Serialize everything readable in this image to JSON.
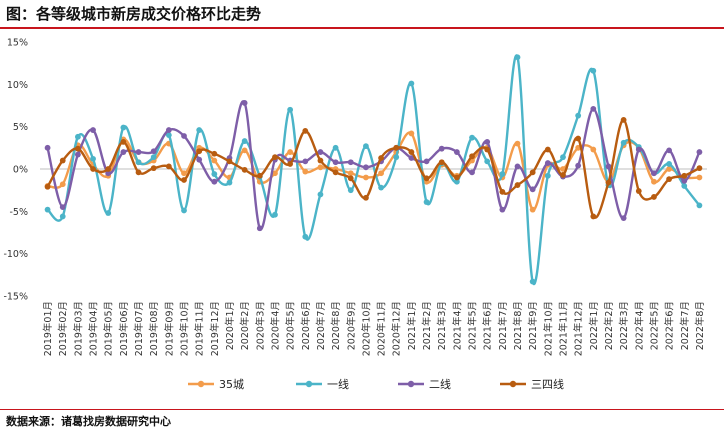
{
  "header": {
    "title": "图：各等级城市新房成交价格环比走势"
  },
  "footer": {
    "source": "数据来源：诸葛找房数据研究中心"
  },
  "chart_data": {
    "type": "line",
    "ylim": [
      -15,
      15
    ],
    "yticks": [
      15,
      10,
      5,
      0,
      -5,
      -10,
      -15
    ],
    "ytick_labels": [
      "15%",
      "10%",
      "5%",
      "0%",
      "-5%",
      "-10%",
      "-15%"
    ],
    "grid": false,
    "legend_position": "bottom",
    "categories": [
      "2019年01月",
      "2019年02月",
      "2019年03月",
      "2019年04月",
      "2019年05月",
      "2019年06月",
      "2019年07月",
      "2019年08月",
      "2019年09月",
      "2019年10月",
      "2019年11月",
      "2019年12月",
      "2020年1月",
      "2020年2月",
      "2020年3月",
      "2020年4月",
      "2020年5月",
      "2020年6月",
      "2020年7月",
      "2020年8月",
      "2020年9月",
      "2020年10月",
      "2020年11月",
      "2020年12月",
      "2021年1月",
      "2021年2月",
      "2021年3月",
      "2021年4月",
      "2021年5月",
      "2021年6月",
      "2021年7月",
      "2021年8月",
      "2021年9月",
      "2021年10月",
      "2021年11月",
      "2021年12月",
      "2022年1月",
      "2022年2月",
      "2022年3月",
      "2022年4月",
      "2022年5月",
      "2022年6月",
      "2022年7月",
      "2022年8月"
    ],
    "series": [
      {
        "name": "35城",
        "color": "#f39c4b",
        "values": [
          -2.0,
          -1.8,
          2.8,
          0.5,
          -0.8,
          3.5,
          0.8,
          1.0,
          3.0,
          -0.5,
          2.5,
          1.0,
          -1.0,
          2.2,
          -1.5,
          -0.5,
          2.0,
          -0.3,
          0.2,
          0.0,
          -0.5,
          -1.0,
          -0.5,
          2.0,
          4.2,
          -1.5,
          0.5,
          -0.8,
          1.0,
          2.5,
          -1.0,
          3.0,
          -4.8,
          0.5,
          0.0,
          2.5,
          2.3,
          -1.5,
          2.8,
          2.5,
          -1.5,
          0.0,
          -1.0,
          -1.0
        ]
      },
      {
        "name": "一线",
        "color": "#4bb4c8",
        "values": [
          -4.8,
          -5.6,
          3.8,
          1.2,
          -5.2,
          4.9,
          0.8,
          1.4,
          4.0,
          -4.9,
          4.6,
          -0.6,
          -1.6,
          3.3,
          -0.9,
          -5.4,
          7.0,
          -8.0,
          -3.0,
          2.5,
          -2.5,
          2.7,
          -2.2,
          1.4,
          10.1,
          -3.9,
          0.7,
          -1.5,
          3.7,
          0.9,
          -0.6,
          13.2,
          -13.3,
          -0.8,
          1.4,
          6.3,
          11.6,
          -1.9,
          3.1,
          2.6,
          -0.5,
          0.6,
          -2.0,
          -4.3
        ]
      },
      {
        "name": "二线",
        "color": "#7e5ea8",
        "values": [
          2.5,
          -4.5,
          1.7,
          4.6,
          -0.5,
          2.0,
          2.0,
          2.1,
          4.6,
          3.9,
          1.1,
          -1.5,
          1.3,
          7.8,
          -7.0,
          1.1,
          1.0,
          0.9,
          2.0,
          0.8,
          0.8,
          0.2,
          0.9,
          2.5,
          1.3,
          0.9,
          2.4,
          2.0,
          -0.4,
          3.2,
          -4.8,
          0.3,
          -2.4,
          0.7,
          -0.9,
          0.4,
          7.1,
          0.3,
          -5.8,
          2.3,
          -0.5,
          2.2,
          -1.4,
          2.0
        ]
      },
      {
        "name": "三四线",
        "color": "#b85c10",
        "values": [
          -2.1,
          1.0,
          2.4,
          0.0,
          0.0,
          3.2,
          -0.4,
          0.1,
          0.3,
          -1.3,
          2.1,
          1.8,
          0.9,
          -0.1,
          -0.8,
          1.4,
          0.6,
          4.5,
          1.0,
          -0.4,
          -1.1,
          -3.4,
          1.3,
          2.5,
          2.0,
          -1.1,
          0.8,
          -1.0,
          1.5,
          2.3,
          -2.7,
          -1.9,
          -0.4,
          2.3,
          -0.7,
          3.6,
          -5.6,
          -1.6,
          5.8,
          -2.6,
          -3.3,
          -1.2,
          -0.8,
          0.1
        ]
      }
    ]
  }
}
